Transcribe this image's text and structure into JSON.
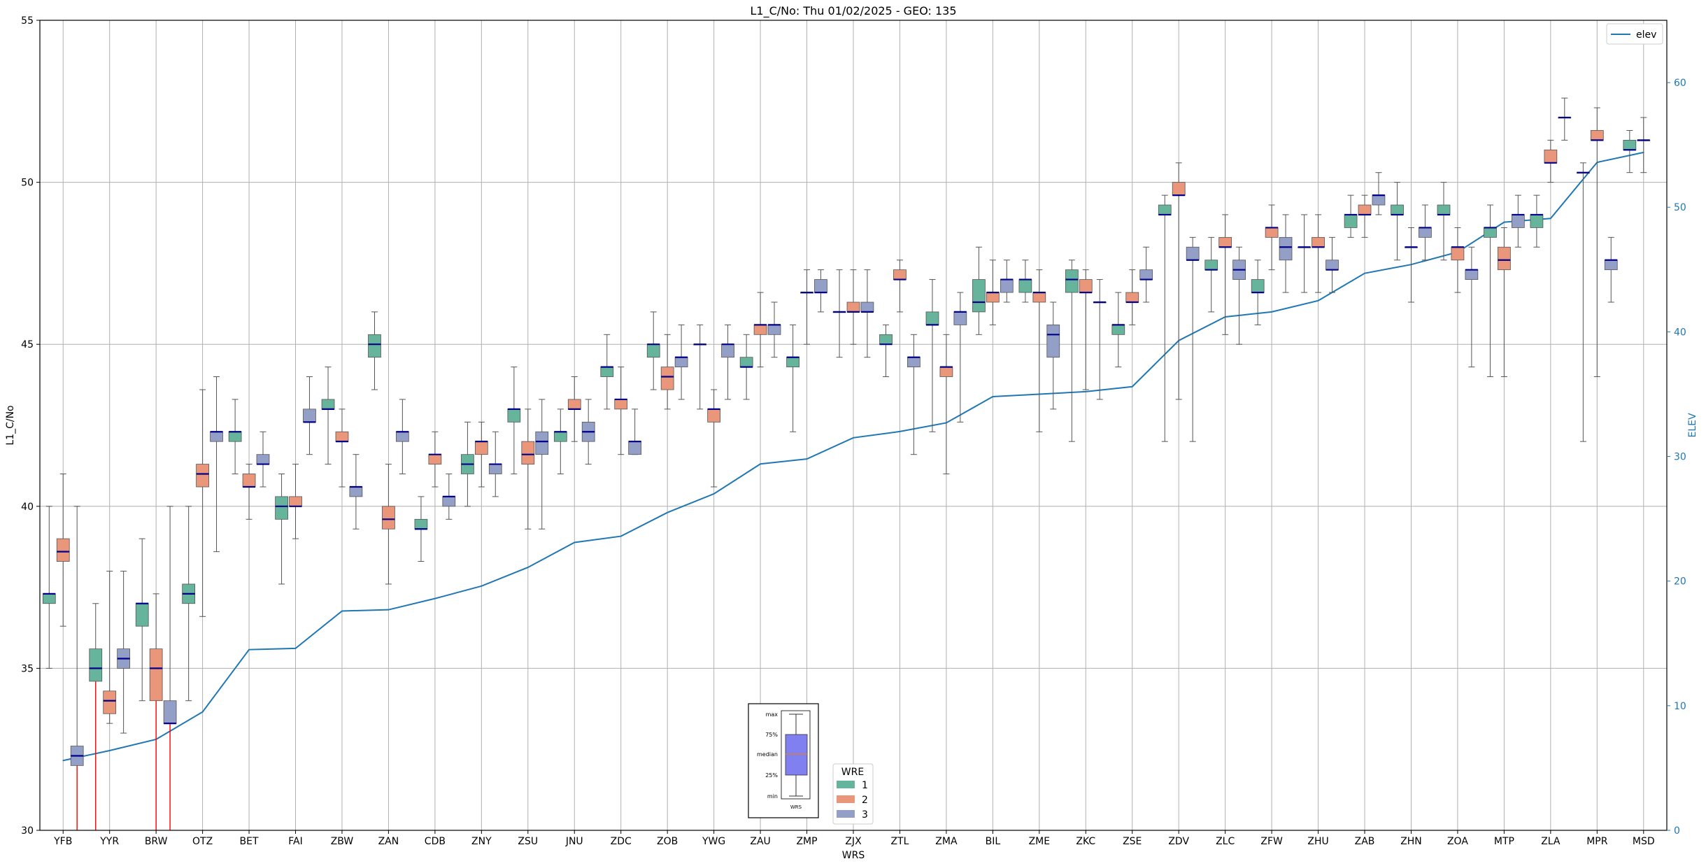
{
  "chart_data": {
    "type": "boxplot",
    "title": "L1_C/No: Thu 01/02/2025 - GEO: 135",
    "xlabel": "WRS",
    "ylabel": "L1_C/No",
    "y2label": "ELEV",
    "ylim": [
      30,
      55
    ],
    "y2lim": [
      0,
      65
    ],
    "yticks": [
      30,
      35,
      40,
      45,
      50,
      55
    ],
    "y2ticks": [
      0,
      10,
      20,
      30,
      40,
      50,
      60
    ],
    "grid": true,
    "legend_line": {
      "label": "elev",
      "position": "top-right"
    },
    "legend_wre": {
      "title": "WRE",
      "labels": [
        "1",
        "2",
        "3"
      ],
      "position": "bottom-center"
    },
    "colors": {
      "1": "#66b49b",
      "2": "#e9967a",
      "3": "#949fc7",
      "median": "#00008b",
      "elev": "#1f77b4",
      "outlier": "#ff0000",
      "whisker": "#555555"
    },
    "categories": [
      "YFB",
      "YYR",
      "BRW",
      "OTZ",
      "BET",
      "FAI",
      "ZBW",
      "ZAN",
      "CDB",
      "ZNY",
      "ZSU",
      "JNU",
      "ZDC",
      "ZOB",
      "YWG",
      "ZAU",
      "ZMP",
      "ZJX",
      "ZTL",
      "ZMA",
      "BIL",
      "ZME",
      "ZKC",
      "ZSE",
      "ZDV",
      "ZLC",
      "ZFW",
      "ZHU",
      "ZAB",
      "ZHN",
      "ZOA",
      "MTP",
      "ZLA",
      "MPR",
      "MSD"
    ],
    "elev": [
      5.6,
      6.4,
      7.3,
      9.5,
      14.5,
      14.6,
      17.6,
      17.7,
      18.6,
      19.6,
      21.1,
      23.1,
      23.6,
      25.5,
      27.0,
      29.4,
      29.8,
      31.5,
      32.0,
      32.7,
      34.8,
      35.0,
      35.2,
      35.6,
      39.3,
      41.2,
      41.6,
      42.5,
      44.7,
      45.4,
      46.4,
      48.8,
      49.1,
      53.6,
      54.4
    ],
    "boxes": [
      {
        "site": "YFB",
        "wre": 1,
        "min": 35.0,
        "q1": 37.0,
        "median": 37.3,
        "q3": 37.3,
        "max": 40.0
      },
      {
        "site": "YFB",
        "wre": 2,
        "min": 36.3,
        "q1": 38.3,
        "median": 38.6,
        "q3": 39.0,
        "max": 41.0
      },
      {
        "site": "YFB",
        "wre": 3,
        "min": 30.0,
        "q1": 32.0,
        "median": 32.3,
        "q3": 32.6,
        "max": 40.0
      },
      {
        "site": "YYR",
        "wre": 1,
        "min": 30.0,
        "q1": 34.6,
        "median": 35.0,
        "q3": 35.6,
        "max": 37.0
      },
      {
        "site": "YYR",
        "wre": 2,
        "min": 33.3,
        "q1": 33.6,
        "median": 34.0,
        "q3": 34.3,
        "max": 38.0
      },
      {
        "site": "YYR",
        "wre": 3,
        "min": 33.0,
        "q1": 35.0,
        "median": 35.3,
        "q3": 35.6,
        "max": 38.0
      },
      {
        "site": "BRW",
        "wre": 1,
        "min": 34.0,
        "q1": 36.3,
        "median": 37.0,
        "q3": 37.0,
        "max": 39.0
      },
      {
        "site": "BRW",
        "wre": 2,
        "min": 30.0,
        "q1": 34.0,
        "median": 35.0,
        "q3": 35.6,
        "max": 37.3
      },
      {
        "site": "BRW",
        "wre": 3,
        "min": 30.0,
        "q1": 33.3,
        "median": 33.3,
        "q3": 34.0,
        "max": 40.0
      },
      {
        "site": "OTZ",
        "wre": 1,
        "min": 34.0,
        "q1": 37.0,
        "median": 37.3,
        "q3": 37.6,
        "max": 40.0
      },
      {
        "site": "OTZ",
        "wre": 2,
        "min": 36.6,
        "q1": 40.6,
        "median": 41.0,
        "q3": 41.3,
        "max": 43.6
      },
      {
        "site": "OTZ",
        "wre": 3,
        "min": 38.6,
        "q1": 42.0,
        "median": 42.3,
        "q3": 42.3,
        "max": 44.0
      },
      {
        "site": "BET",
        "wre": 1,
        "min": 41.0,
        "q1": 42.0,
        "median": 42.3,
        "q3": 42.3,
        "max": 43.3
      },
      {
        "site": "BET",
        "wre": 2,
        "min": 39.6,
        "q1": 40.6,
        "median": 40.6,
        "q3": 41.0,
        "max": 41.3
      },
      {
        "site": "BET",
        "wre": 3,
        "min": 40.6,
        "q1": 41.3,
        "median": 41.3,
        "q3": 41.6,
        "max": 42.3
      },
      {
        "site": "FAI",
        "wre": 1,
        "min": 37.6,
        "q1": 39.6,
        "median": 40.0,
        "q3": 40.3,
        "max": 41.0
      },
      {
        "site": "FAI",
        "wre": 2,
        "min": 39.0,
        "q1": 40.0,
        "median": 40.0,
        "q3": 40.3,
        "max": 41.3
      },
      {
        "site": "FAI",
        "wre": 3,
        "min": 41.6,
        "q1": 42.6,
        "median": 42.6,
        "q3": 43.0,
        "max": 44.0
      },
      {
        "site": "ZBW",
        "wre": 1,
        "min": 41.3,
        "q1": 43.0,
        "median": 43.0,
        "q3": 43.3,
        "max": 44.3
      },
      {
        "site": "ZBW",
        "wre": 2,
        "min": 40.6,
        "q1": 42.0,
        "median": 42.0,
        "q3": 42.3,
        "max": 43.0
      },
      {
        "site": "ZBW",
        "wre": 3,
        "min": 39.3,
        "q1": 40.3,
        "median": 40.6,
        "q3": 40.6,
        "max": 41.6
      },
      {
        "site": "ZAN",
        "wre": 1,
        "min": 43.6,
        "q1": 44.6,
        "median": 45.0,
        "q3": 45.3,
        "max": 46.0
      },
      {
        "site": "ZAN",
        "wre": 2,
        "min": 37.6,
        "q1": 39.3,
        "median": 39.6,
        "q3": 40.0,
        "max": 41.3
      },
      {
        "site": "ZAN",
        "wre": 3,
        "min": 41.0,
        "q1": 42.0,
        "median": 42.3,
        "q3": 42.3,
        "max": 43.3
      },
      {
        "site": "CDB",
        "wre": 1,
        "min": 38.3,
        "q1": 39.3,
        "median": 39.3,
        "q3": 39.6,
        "max": 40.3
      },
      {
        "site": "CDB",
        "wre": 2,
        "min": 40.6,
        "q1": 41.3,
        "median": 41.6,
        "q3": 41.6,
        "max": 42.3
      },
      {
        "site": "CDB",
        "wre": 3,
        "min": 39.6,
        "q1": 40.0,
        "median": 40.3,
        "q3": 40.3,
        "max": 41.0
      },
      {
        "site": "ZNY",
        "wre": 1,
        "min": 40.0,
        "q1": 41.0,
        "median": 41.3,
        "q3": 41.6,
        "max": 42.6
      },
      {
        "site": "ZNY",
        "wre": 2,
        "min": 40.6,
        "q1": 41.6,
        "median": 42.0,
        "q3": 42.0,
        "max": 42.6
      },
      {
        "site": "ZNY",
        "wre": 3,
        "min": 40.3,
        "q1": 41.0,
        "median": 41.3,
        "q3": 41.3,
        "max": 42.3
      },
      {
        "site": "ZSU",
        "wre": 1,
        "min": 41.0,
        "q1": 42.6,
        "median": 43.0,
        "q3": 43.0,
        "max": 44.3
      },
      {
        "site": "ZSU",
        "wre": 2,
        "min": 39.3,
        "q1": 41.3,
        "median": 41.6,
        "q3": 42.0,
        "max": 43.0
      },
      {
        "site": "ZSU",
        "wre": 3,
        "min": 39.3,
        "q1": 41.6,
        "median": 42.0,
        "q3": 42.3,
        "max": 43.3
      },
      {
        "site": "JNU",
        "wre": 1,
        "min": 41.0,
        "q1": 42.0,
        "median": 42.3,
        "q3": 42.3,
        "max": 43.0
      },
      {
        "site": "JNU",
        "wre": 2,
        "min": 42.0,
        "q1": 43.0,
        "median": 43.0,
        "q3": 43.3,
        "max": 44.0
      },
      {
        "site": "JNU",
        "wre": 3,
        "min": 41.3,
        "q1": 42.0,
        "median": 42.3,
        "q3": 42.6,
        "max": 43.3
      },
      {
        "site": "ZDC",
        "wre": 1,
        "min": 43.0,
        "q1": 44.0,
        "median": 44.3,
        "q3": 44.3,
        "max": 45.3
      },
      {
        "site": "ZDC",
        "wre": 2,
        "min": 41.6,
        "q1": 43.0,
        "median": 43.3,
        "q3": 43.3,
        "max": 44.3
      },
      {
        "site": "ZDC",
        "wre": 3,
        "min": 41.6,
        "q1": 41.6,
        "median": 42.0,
        "q3": 42.0,
        "max": 43.0
      },
      {
        "site": "ZOB",
        "wre": 1,
        "min": 43.6,
        "q1": 44.6,
        "median": 45.0,
        "q3": 45.0,
        "max": 46.0
      },
      {
        "site": "ZOB",
        "wre": 2,
        "min": 43.0,
        "q1": 43.6,
        "median": 44.0,
        "q3": 44.3,
        "max": 45.3
      },
      {
        "site": "ZOB",
        "wre": 3,
        "min": 43.3,
        "q1": 44.3,
        "median": 44.6,
        "q3": 44.6,
        "max": 45.6
      },
      {
        "site": "YWG",
        "wre": 1,
        "min": 43.0,
        "q1": 45.0,
        "median": 45.0,
        "q3": 45.0,
        "max": 45.6
      },
      {
        "site": "YWG",
        "wre": 2,
        "min": 40.6,
        "q1": 42.6,
        "median": 43.0,
        "q3": 43.0,
        "max": 43.6
      },
      {
        "site": "YWG",
        "wre": 3,
        "min": 43.3,
        "q1": 44.6,
        "median": 45.0,
        "q3": 45.0,
        "max": 45.6
      },
      {
        "site": "ZAU",
        "wre": 1,
        "min": 43.3,
        "q1": 44.3,
        "median": 44.3,
        "q3": 44.6,
        "max": 45.3
      },
      {
        "site": "ZAU",
        "wre": 2,
        "min": 44.3,
        "q1": 45.3,
        "median": 45.6,
        "q3": 45.6,
        "max": 46.6
      },
      {
        "site": "ZAU",
        "wre": 3,
        "min": 44.6,
        "q1": 45.3,
        "median": 45.6,
        "q3": 45.6,
        "max": 46.3
      },
      {
        "site": "ZMP",
        "wre": 1,
        "min": 42.3,
        "q1": 44.3,
        "median": 44.6,
        "q3": 44.6,
        "max": 45.6
      },
      {
        "site": "ZMP",
        "wre": 2,
        "min": 45.0,
        "q1": 46.6,
        "median": 46.6,
        "q3": 46.6,
        "max": 47.3
      },
      {
        "site": "ZMP",
        "wre": 3,
        "min": 46.0,
        "q1": 46.6,
        "median": 46.6,
        "q3": 47.0,
        "max": 47.3
      },
      {
        "site": "ZJX",
        "wre": 1,
        "min": 44.6,
        "q1": 46.0,
        "median": 46.0,
        "q3": 46.0,
        "max": 47.3
      },
      {
        "site": "ZJX",
        "wre": 2,
        "min": 45.0,
        "q1": 46.0,
        "median": 46.0,
        "q3": 46.3,
        "max": 47.3
      },
      {
        "site": "ZJX",
        "wre": 3,
        "min": 44.6,
        "q1": 46.0,
        "median": 46.0,
        "q3": 46.3,
        "max": 47.3
      },
      {
        "site": "ZTL",
        "wre": 1,
        "min": 44.0,
        "q1": 45.0,
        "median": 45.0,
        "q3": 45.3,
        "max": 45.6
      },
      {
        "site": "ZTL",
        "wre": 2,
        "min": 46.0,
        "q1": 47.0,
        "median": 47.0,
        "q3": 47.3,
        "max": 47.6
      },
      {
        "site": "ZTL",
        "wre": 3,
        "min": 41.6,
        "q1": 44.3,
        "median": 44.6,
        "q3": 44.6,
        "max": 45.3
      },
      {
        "site": "ZMA",
        "wre": 1,
        "min": 42.3,
        "q1": 45.6,
        "median": 45.6,
        "q3": 46.0,
        "max": 47.0
      },
      {
        "site": "ZMA",
        "wre": 2,
        "min": 41.0,
        "q1": 44.0,
        "median": 44.3,
        "q3": 44.3,
        "max": 45.3
      },
      {
        "site": "ZMA",
        "wre": 3,
        "min": 42.6,
        "q1": 45.6,
        "median": 46.0,
        "q3": 46.0,
        "max": 46.6
      },
      {
        "site": "BIL",
        "wre": 1,
        "min": 45.3,
        "q1": 46.0,
        "median": 46.3,
        "q3": 47.0,
        "max": 48.0
      },
      {
        "site": "BIL",
        "wre": 2,
        "min": 45.6,
        "q1": 46.3,
        "median": 46.6,
        "q3": 46.6,
        "max": 47.6
      },
      {
        "site": "BIL",
        "wre": 3,
        "min": 46.3,
        "q1": 46.6,
        "median": 47.0,
        "q3": 47.0,
        "max": 47.6
      },
      {
        "site": "ZME",
        "wre": 1,
        "min": 46.3,
        "q1": 46.6,
        "median": 47.0,
        "q3": 47.0,
        "max": 47.6
      },
      {
        "site": "ZME",
        "wre": 2,
        "min": 42.3,
        "q1": 46.3,
        "median": 46.6,
        "q3": 46.6,
        "max": 47.3
      },
      {
        "site": "ZME",
        "wre": 3,
        "min": 43.0,
        "q1": 44.6,
        "median": 45.3,
        "q3": 45.6,
        "max": 46.3
      },
      {
        "site": "ZKC",
        "wre": 1,
        "min": 42.0,
        "q1": 46.6,
        "median": 47.0,
        "q3": 47.3,
        "max": 47.6
      },
      {
        "site": "ZKC",
        "wre": 2,
        "min": 43.6,
        "q1": 46.6,
        "median": 46.6,
        "q3": 47.0,
        "max": 47.3
      },
      {
        "site": "ZKC",
        "wre": 3,
        "min": 43.3,
        "q1": 46.3,
        "median": 46.3,
        "q3": 46.3,
        "max": 47.0
      },
      {
        "site": "ZSE",
        "wre": 1,
        "min": 44.3,
        "q1": 45.3,
        "median": 45.6,
        "q3": 45.6,
        "max": 46.6
      },
      {
        "site": "ZSE",
        "wre": 2,
        "min": 45.6,
        "q1": 46.3,
        "median": 46.3,
        "q3": 46.6,
        "max": 47.3
      },
      {
        "site": "ZSE",
        "wre": 3,
        "min": 46.3,
        "q1": 47.0,
        "median": 47.0,
        "q3": 47.3,
        "max": 48.0
      },
      {
        "site": "ZDV",
        "wre": 1,
        "min": 42.0,
        "q1": 49.0,
        "median": 49.0,
        "q3": 49.3,
        "max": 49.6
      },
      {
        "site": "ZDV",
        "wre": 2,
        "min": 43.3,
        "q1": 49.6,
        "median": 49.6,
        "q3": 50.0,
        "max": 50.6
      },
      {
        "site": "ZDV",
        "wre": 3,
        "min": 42.0,
        "q1": 47.6,
        "median": 47.6,
        "q3": 48.0,
        "max": 48.3
      },
      {
        "site": "ZLC",
        "wre": 1,
        "min": 46.0,
        "q1": 47.3,
        "median": 47.3,
        "q3": 47.6,
        "max": 48.3
      },
      {
        "site": "ZLC",
        "wre": 2,
        "min": 45.3,
        "q1": 48.0,
        "median": 48.0,
        "q3": 48.3,
        "max": 49.0
      },
      {
        "site": "ZLC",
        "wre": 3,
        "min": 45.0,
        "q1": 47.0,
        "median": 47.3,
        "q3": 47.6,
        "max": 48.0
      },
      {
        "site": "ZFW",
        "wre": 1,
        "min": 45.6,
        "q1": 46.6,
        "median": 46.6,
        "q3": 47.0,
        "max": 47.6
      },
      {
        "site": "ZFW",
        "wre": 2,
        "min": 47.3,
        "q1": 48.3,
        "median": 48.6,
        "q3": 48.6,
        "max": 49.3
      },
      {
        "site": "ZFW",
        "wre": 3,
        "min": 46.6,
        "q1": 47.6,
        "median": 48.0,
        "q3": 48.3,
        "max": 49.0
      },
      {
        "site": "ZHU",
        "wre": 1,
        "min": 46.6,
        "q1": 48.0,
        "median": 48.0,
        "q3": 48.0,
        "max": 49.0
      },
      {
        "site": "ZHU",
        "wre": 2,
        "min": 46.6,
        "q1": 48.0,
        "median": 48.0,
        "q3": 48.3,
        "max": 49.0
      },
      {
        "site": "ZHU",
        "wre": 3,
        "min": 46.6,
        "q1": 47.3,
        "median": 47.3,
        "q3": 47.6,
        "max": 48.3
      },
      {
        "site": "ZAB",
        "wre": 1,
        "min": 48.3,
        "q1": 48.6,
        "median": 49.0,
        "q3": 49.0,
        "max": 49.6
      },
      {
        "site": "ZAB",
        "wre": 2,
        "min": 48.3,
        "q1": 49.0,
        "median": 49.0,
        "q3": 49.3,
        "max": 49.6
      },
      {
        "site": "ZAB",
        "wre": 3,
        "min": 49.0,
        "q1": 49.3,
        "median": 49.6,
        "q3": 49.6,
        "max": 50.3
      },
      {
        "site": "ZHN",
        "wre": 1,
        "min": 47.6,
        "q1": 49.0,
        "median": 49.0,
        "q3": 49.3,
        "max": 50.0
      },
      {
        "site": "ZHN",
        "wre": 2,
        "min": 46.3,
        "q1": 48.0,
        "median": 48.0,
        "q3": 48.0,
        "max": 48.6
      },
      {
        "site": "ZHN",
        "wre": 3,
        "min": 47.6,
        "q1": 48.3,
        "median": 48.6,
        "q3": 48.6,
        "max": 49.3
      },
      {
        "site": "ZOA",
        "wre": 1,
        "min": 47.6,
        "q1": 49.0,
        "median": 49.0,
        "q3": 49.3,
        "max": 50.0
      },
      {
        "site": "ZOA",
        "wre": 2,
        "min": 46.6,
        "q1": 47.6,
        "median": 48.0,
        "q3": 48.0,
        "max": 48.6
      },
      {
        "site": "ZOA",
        "wre": 3,
        "min": 44.3,
        "q1": 47.0,
        "median": 47.3,
        "q3": 47.3,
        "max": 48.0
      },
      {
        "site": "MTP",
        "wre": 1,
        "min": 44.0,
        "q1": 48.3,
        "median": 48.6,
        "q3": 48.6,
        "max": 49.3
      },
      {
        "site": "MTP",
        "wre": 2,
        "min": 44.0,
        "q1": 47.3,
        "median": 47.6,
        "q3": 48.0,
        "max": 48.6
      },
      {
        "site": "MTP",
        "wre": 3,
        "min": 48.0,
        "q1": 48.6,
        "median": 49.0,
        "q3": 49.0,
        "max": 49.6
      },
      {
        "site": "ZLA",
        "wre": 1,
        "min": 48.0,
        "q1": 48.6,
        "median": 49.0,
        "q3": 49.0,
        "max": 49.6
      },
      {
        "site": "ZLA",
        "wre": 2,
        "min": 50.0,
        "q1": 50.6,
        "median": 50.6,
        "q3": 51.0,
        "max": 51.3
      },
      {
        "site": "ZLA",
        "wre": 3,
        "min": 51.3,
        "q1": 52.0,
        "median": 52.0,
        "q3": 52.0,
        "max": 52.6
      },
      {
        "site": "MPR",
        "wre": 1,
        "min": 42.0,
        "q1": 50.3,
        "median": 50.3,
        "q3": 50.3,
        "max": 50.6
      },
      {
        "site": "MPR",
        "wre": 2,
        "min": 44.0,
        "q1": 51.3,
        "median": 51.3,
        "q3": 51.6,
        "max": 52.3
      },
      {
        "site": "MPR",
        "wre": 3,
        "min": 46.3,
        "q1": 47.3,
        "median": 47.6,
        "q3": 47.6,
        "max": 48.3
      },
      {
        "site": "MSD",
        "wre": 1,
        "min": 50.3,
        "q1": 51.0,
        "median": 51.0,
        "q3": 51.3,
        "max": 51.6
      },
      {
        "site": "MSD",
        "wre": 2,
        "min": 50.3,
        "q1": 51.3,
        "median": 51.3,
        "q3": 51.3,
        "max": 52.0
      }
    ]
  },
  "inset": {
    "labels": [
      "max",
      "75%",
      "median",
      "25%",
      "min"
    ],
    "xlabel": "WRS"
  }
}
